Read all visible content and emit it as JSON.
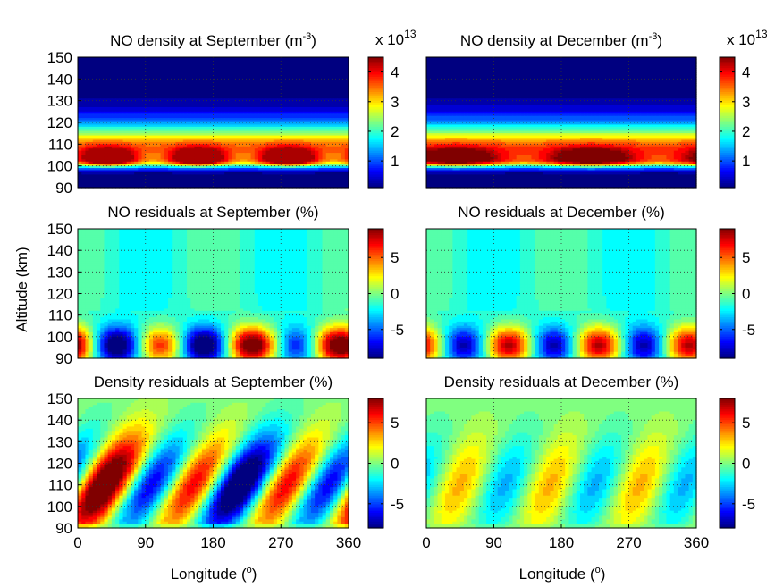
{
  "figure": {
    "ylabel": "Altitude (km)",
    "xlabel_text": "Longitude (",
    "xlabel_sup": "o",
    "xlabel_close": ")"
  },
  "chart_data": [
    {
      "type": "heatmap",
      "title": "NO density at September (m",
      "title_sup": "-3",
      "title_close": ")",
      "colorbar_multiplier": "x 10",
      "colorbar_multiplier_exp": "13",
      "x_range": [
        0,
        360
      ],
      "y_range": [
        90,
        150
      ],
      "x_ticks": [],
      "y_ticks": [
        90,
        100,
        110,
        120,
        130,
        140,
        150
      ],
      "colorbar_range": [
        0.1,
        4.5
      ],
      "colorbar_ticks": [
        1,
        2,
        3,
        4
      ],
      "grid": true,
      "field": {
        "kind": "density",
        "peak_altitude": 103,
        "peak_value": 4.4,
        "lon_wave": 3,
        "wave_amp": 0.25
      }
    },
    {
      "type": "heatmap",
      "title": "NO density at December (m",
      "title_sup": "-3",
      "title_close": ")",
      "colorbar_multiplier": "x 10",
      "colorbar_multiplier_exp": "13",
      "x_range": [
        0,
        360
      ],
      "y_range": [
        90,
        150
      ],
      "x_ticks": [],
      "y_ticks": [],
      "colorbar_range": [
        0.1,
        4.5
      ],
      "colorbar_ticks": [
        1,
        2,
        3,
        4
      ],
      "grid": true,
      "field": {
        "kind": "density",
        "peak_altitude": 103,
        "peak_value": 4.5,
        "lon_wave": 2,
        "wave_amp": 0.2
      }
    },
    {
      "type": "heatmap",
      "title": "NO residuals at September (%)",
      "x_range": [
        0,
        360
      ],
      "y_range": [
        90,
        150
      ],
      "x_ticks": [],
      "y_ticks": [
        90,
        100,
        110,
        120,
        130,
        140,
        150
      ],
      "colorbar_range": [
        -9,
        9
      ],
      "colorbar_ticks": [
        -5,
        0,
        5
      ],
      "grid": true,
      "field": {
        "kind": "no_resid",
        "amp": 9,
        "waves": [
          3,
          1
        ],
        "wave_weights": [
          1,
          0.35
        ],
        "phase": -10,
        "peak_altitude": 96,
        "tilt": 0
      }
    },
    {
      "type": "heatmap",
      "title": "NO residuals at December (%)",
      "x_range": [
        0,
        360
      ],
      "y_range": [
        90,
        150
      ],
      "x_ticks": [],
      "y_ticks": [],
      "colorbar_range": [
        -9,
        9
      ],
      "colorbar_ticks": [
        -5,
        0,
        5
      ],
      "grid": true,
      "field": {
        "kind": "no_resid",
        "amp": 8,
        "waves": [
          3
        ],
        "wave_weights": [
          1
        ],
        "phase": -10,
        "peak_altitude": 96,
        "tilt": 0
      }
    },
    {
      "type": "heatmap",
      "title": "Density residuals at September (%)",
      "x_range": [
        0,
        360
      ],
      "y_range": [
        90,
        150
      ],
      "x_ticks": [
        0,
        90,
        180,
        270,
        360
      ],
      "y_ticks": [
        90,
        100,
        110,
        120,
        130,
        140,
        150
      ],
      "colorbar_range": [
        -8,
        8
      ],
      "colorbar_ticks": [
        -5,
        0,
        5
      ],
      "grid": true,
      "field": {
        "kind": "den_resid",
        "amp": 7.5,
        "waves": [
          3,
          1
        ],
        "wave_weights": [
          1,
          0.4
        ],
        "phase": 20,
        "tilt": 1.6
      }
    },
    {
      "type": "heatmap",
      "title": "Density residuals at December (%)",
      "x_range": [
        0,
        360
      ],
      "y_range": [
        90,
        150
      ],
      "x_ticks": [
        0,
        90,
        180,
        270,
        360
      ],
      "y_ticks": [],
      "colorbar_range": [
        -8,
        8
      ],
      "colorbar_ticks": [
        -5,
        0,
        5
      ],
      "grid": true,
      "field": {
        "kind": "den_resid",
        "amp": 3.2,
        "waves": [
          3
        ],
        "wave_weights": [
          1
        ],
        "phase": 35,
        "tilt": 1.0
      }
    }
  ]
}
